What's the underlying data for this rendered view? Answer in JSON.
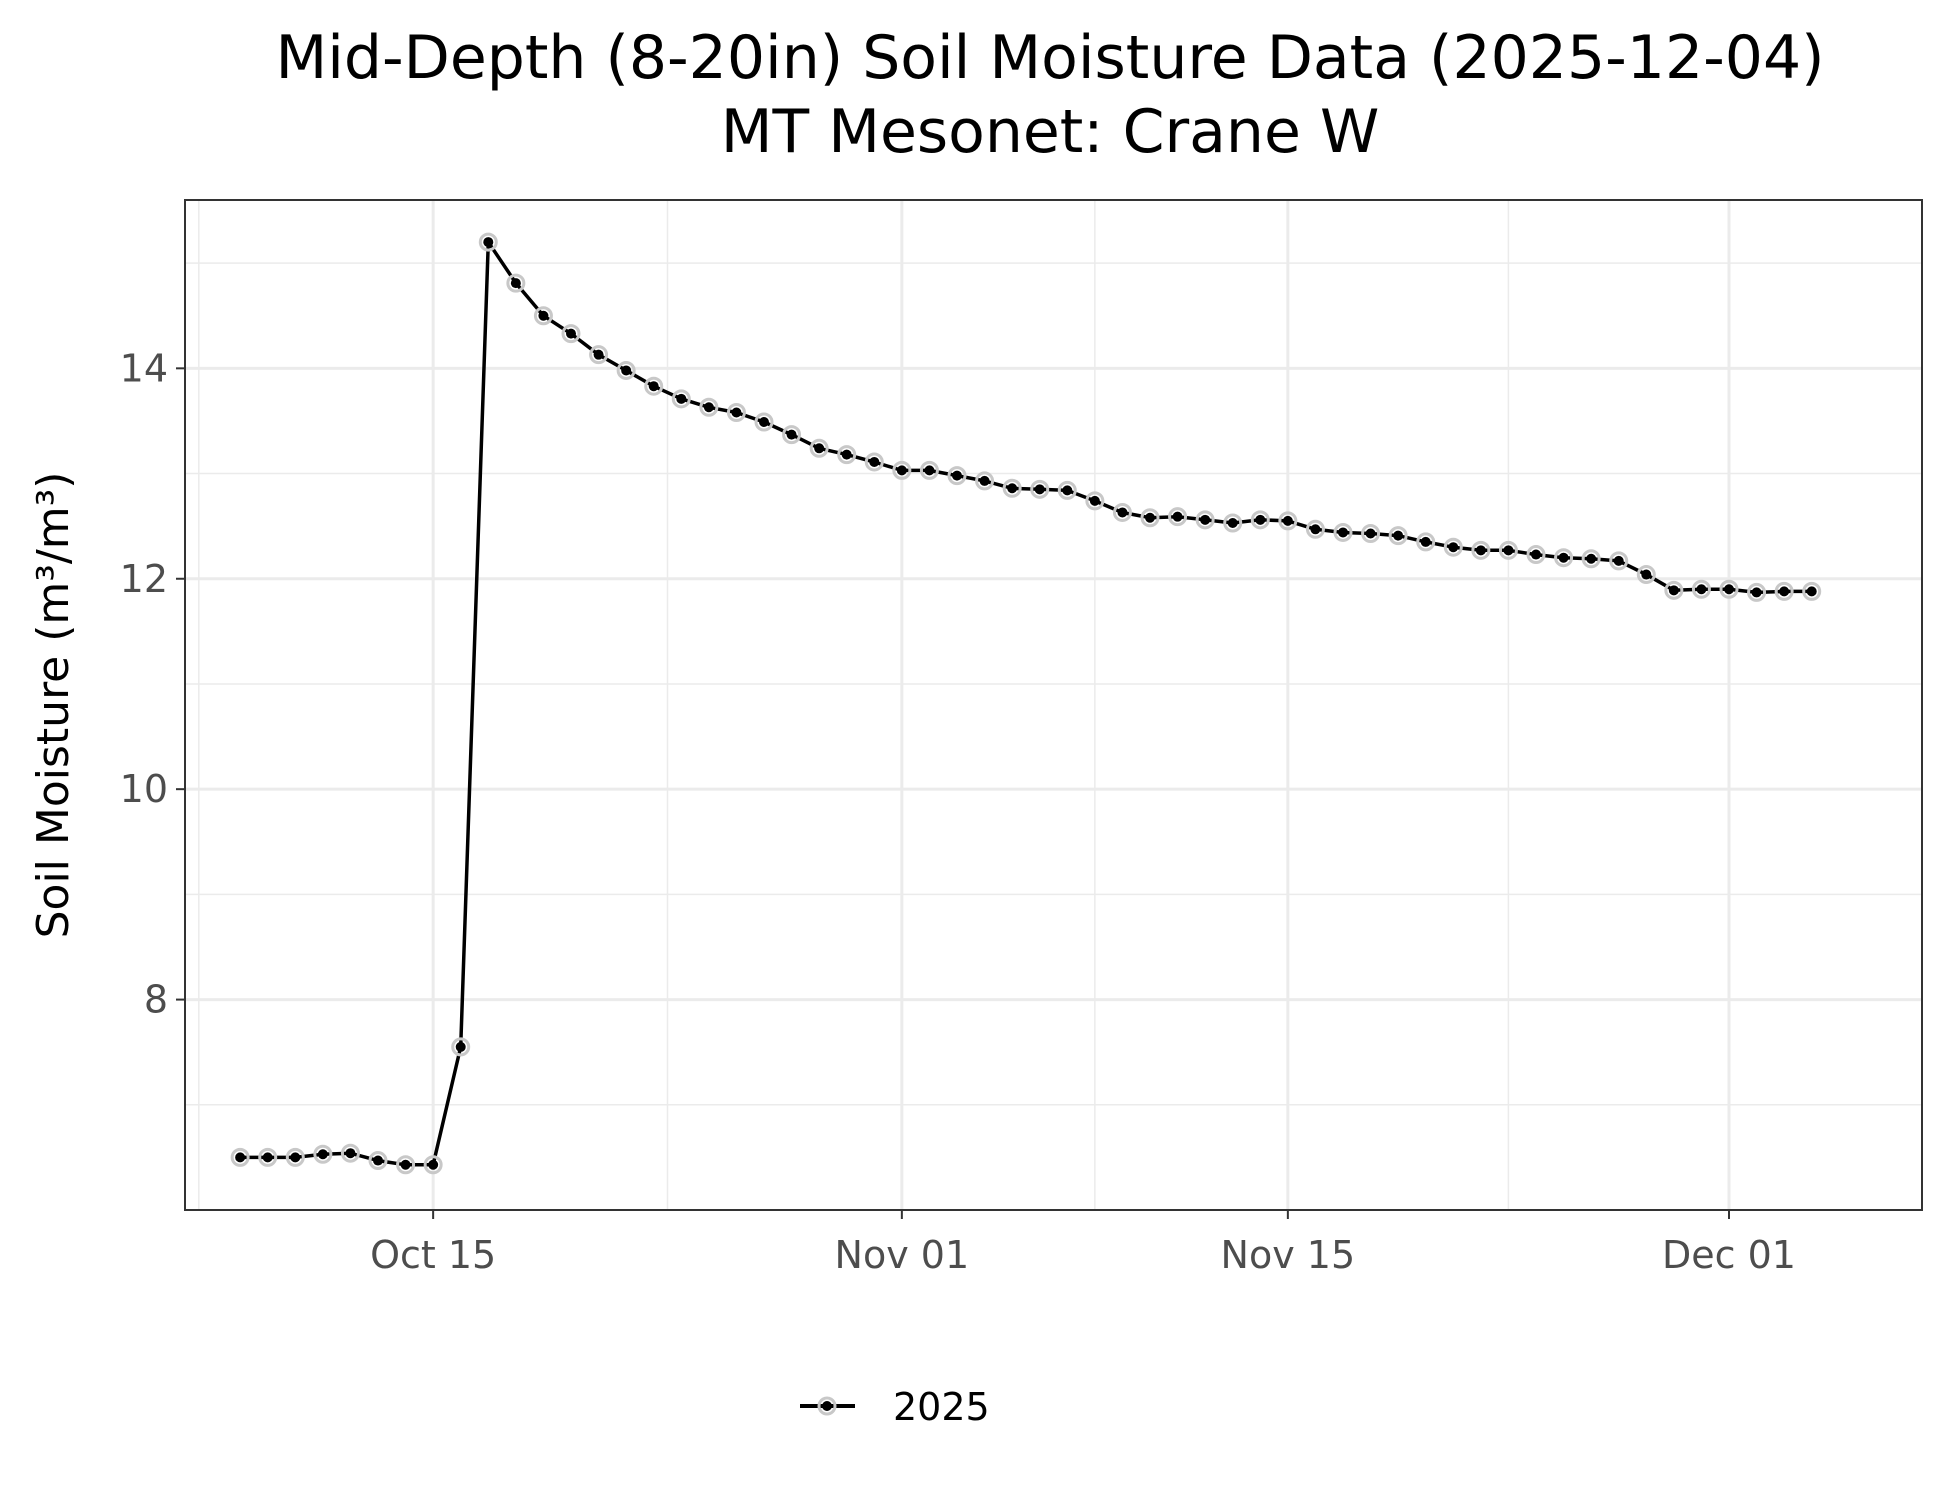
{
  "chart_data": {
    "type": "line",
    "title": "Mid-Depth (8-20in) Soil Moisture Data (2025-12-04)",
    "subtitle": "MT Mesonet: Crane W",
    "xlabel": "",
    "ylabel": "Soil Moisture (m³/m³)",
    "xlim": [
      "2025-10-06",
      "2025-12-08"
    ],
    "ylim": [
      6.0,
      15.6
    ],
    "x_ticks": [
      {
        "date": "2025-10-15",
        "label": "Oct 15"
      },
      {
        "date": "2025-11-01",
        "label": "Nov 01"
      },
      {
        "date": "2025-11-15",
        "label": "Nov 15"
      },
      {
        "date": "2025-12-01",
        "label": "Dec 01"
      }
    ],
    "y_ticks": [
      8,
      10,
      12,
      14
    ],
    "grid": true,
    "legend": {
      "position": "bottom",
      "entries": [
        "2025"
      ]
    },
    "colors": {
      "line": "#000000",
      "point_halo": "#c8c8c8",
      "grid": "#ebebeb",
      "panel_border": "#333333"
    },
    "series": [
      {
        "name": "2025",
        "x": [
          "2025-10-08",
          "2025-10-09",
          "2025-10-10",
          "2025-10-11",
          "2025-10-12",
          "2025-10-13",
          "2025-10-14",
          "2025-10-15",
          "2025-10-16",
          "2025-10-17",
          "2025-10-18",
          "2025-10-19",
          "2025-10-20",
          "2025-10-21",
          "2025-10-22",
          "2025-10-23",
          "2025-10-24",
          "2025-10-25",
          "2025-10-26",
          "2025-10-27",
          "2025-10-28",
          "2025-10-29",
          "2025-10-30",
          "2025-10-31",
          "2025-11-01",
          "2025-11-02",
          "2025-11-03",
          "2025-11-04",
          "2025-11-05",
          "2025-11-06",
          "2025-11-07",
          "2025-11-08",
          "2025-11-09",
          "2025-11-10",
          "2025-11-11",
          "2025-11-12",
          "2025-11-13",
          "2025-11-14",
          "2025-11-15",
          "2025-11-16",
          "2025-11-17",
          "2025-11-18",
          "2025-11-19",
          "2025-11-20",
          "2025-11-21",
          "2025-11-22",
          "2025-11-23",
          "2025-11-24",
          "2025-11-25",
          "2025-11-26",
          "2025-11-27",
          "2025-11-28",
          "2025-11-29",
          "2025-11-30",
          "2025-12-01",
          "2025-12-02",
          "2025-12-03",
          "2025-12-04"
        ],
        "y": [
          6.5,
          6.5,
          6.5,
          6.53,
          6.54,
          6.47,
          6.43,
          6.43,
          7.55,
          15.2,
          14.81,
          14.5,
          14.33,
          14.13,
          13.98,
          13.83,
          13.71,
          13.63,
          13.58,
          13.49,
          13.37,
          13.24,
          13.18,
          13.11,
          13.03,
          13.03,
          12.98,
          12.93,
          12.86,
          12.85,
          12.84,
          12.74,
          12.63,
          12.58,
          12.59,
          12.56,
          12.53,
          12.56,
          12.55,
          12.47,
          12.44,
          12.43,
          12.41,
          12.35,
          12.3,
          12.27,
          12.27,
          12.23,
          12.2,
          12.19,
          12.17,
          12.04,
          11.89,
          11.9,
          11.9,
          11.87,
          11.88,
          11.88
        ]
      }
    ]
  }
}
